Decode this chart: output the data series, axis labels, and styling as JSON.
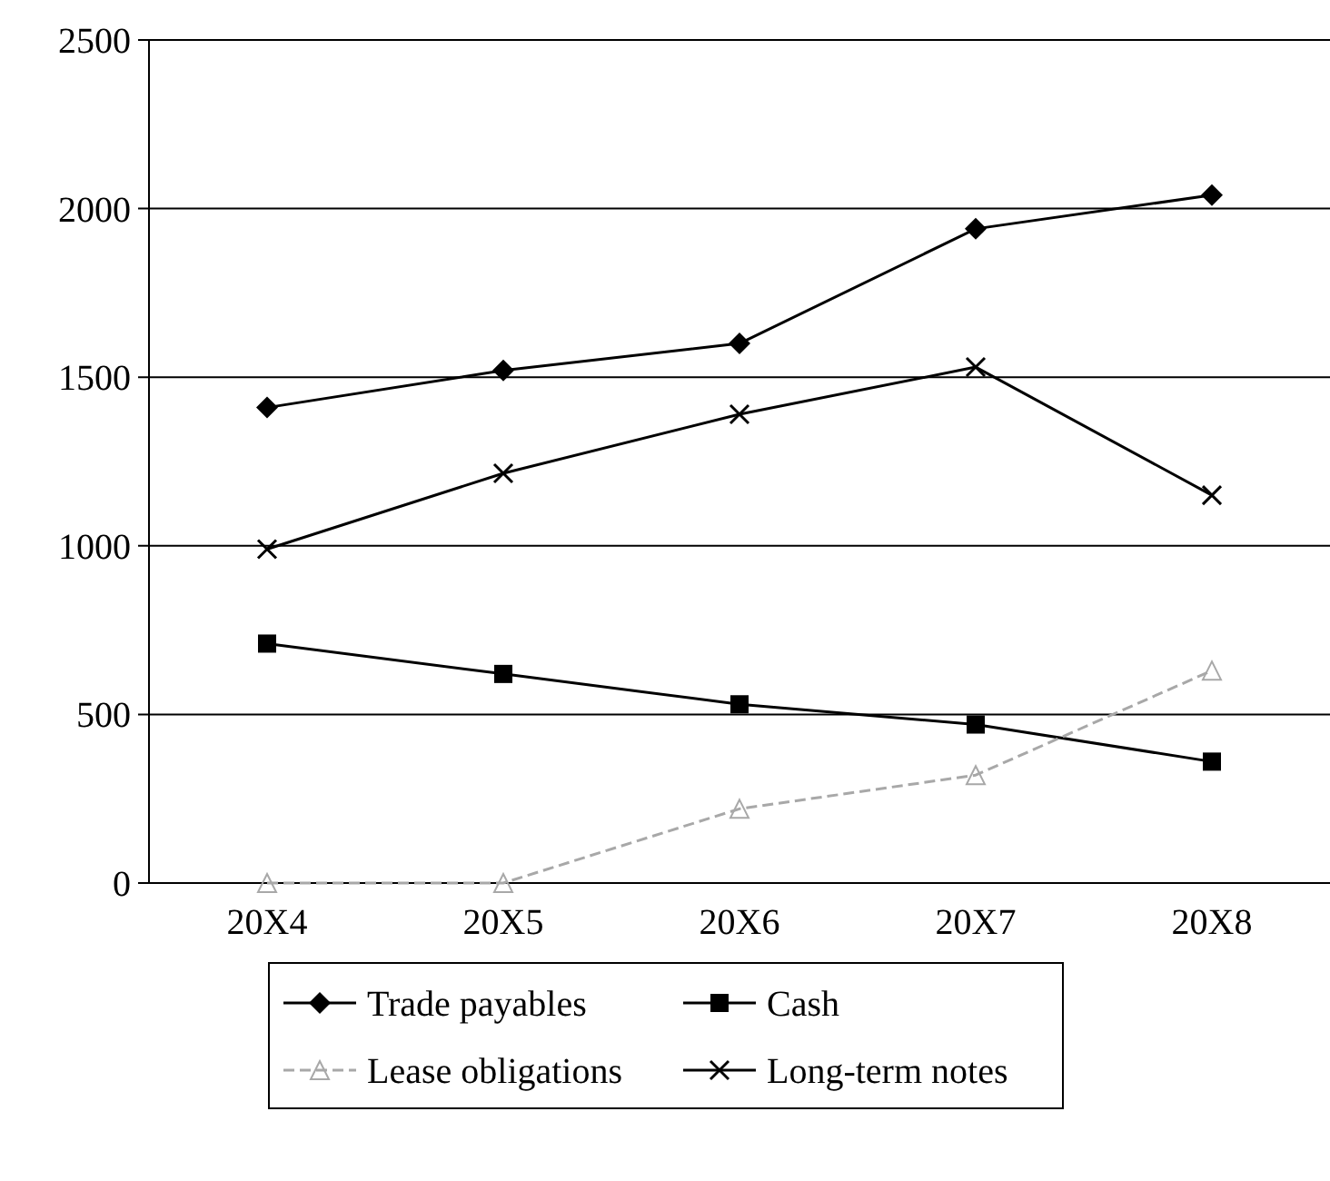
{
  "chart_data": {
    "type": "line",
    "categories": [
      "20X4",
      "20X5",
      "20X6",
      "20X7",
      "20X8"
    ],
    "series": [
      {
        "name": "Trade payables",
        "color": "#000000",
        "marker": "diamond",
        "line_style": "solid",
        "values": [
          1410,
          1520,
          1600,
          1940,
          2040
        ]
      },
      {
        "name": "Cash",
        "color": "#000000",
        "marker": "square",
        "line_style": "solid",
        "values": [
          710,
          620,
          530,
          470,
          360
        ]
      },
      {
        "name": "Lease obligations",
        "color": "#a8a8a8",
        "marker": "triangle",
        "line_style": "dashed",
        "values": [
          0,
          0,
          220,
          320,
          630
        ]
      },
      {
        "name": "Long-term notes",
        "color": "#000000",
        "marker": "cross",
        "line_style": "solid",
        "values": [
          990,
          1215,
          1390,
          1530,
          1150
        ]
      }
    ],
    "ylim": [
      0,
      2500
    ],
    "yticks": [
      0,
      500,
      1000,
      1500,
      2000,
      2500
    ],
    "grid": "y",
    "legend": "bottom"
  }
}
